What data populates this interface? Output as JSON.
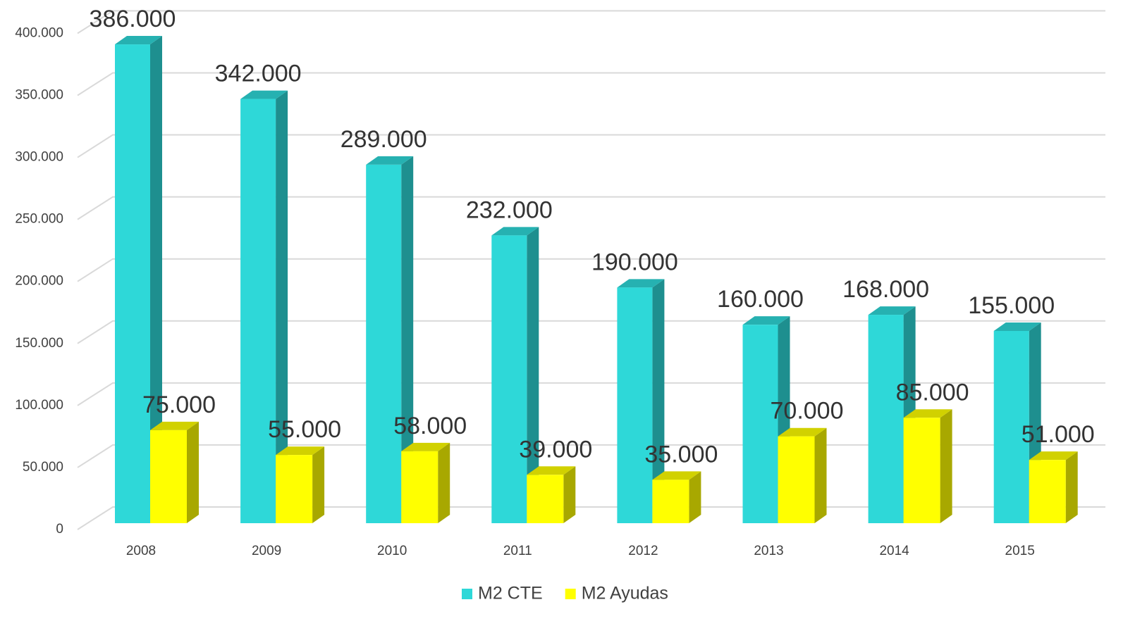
{
  "chart_data": {
    "type": "bar3d",
    "categories": [
      "2008",
      "2009",
      "2010",
      "2011",
      "2012",
      "2013",
      "2014",
      "2015"
    ],
    "series": [
      {
        "name": "M2 CTE",
        "color": "#2ed8d8",
        "values": [
          386000,
          342000,
          289000,
          232000,
          190000,
          160000,
          168000,
          155000
        ],
        "value_labels": [
          "386.000",
          "342.000",
          "289.000",
          "232.000",
          "190.000",
          "160.000",
          "168.000",
          "155.000"
        ]
      },
      {
        "name": "M2 Ayudas",
        "color": "#ffff00",
        "values": [
          75000,
          55000,
          58000,
          39000,
          35000,
          70000,
          85000,
          51000
        ],
        "value_labels": [
          "75.000",
          "55.000",
          "58.000",
          "39.000",
          "35.000",
          "70.000",
          "85.000",
          "51.000"
        ]
      }
    ],
    "ylim": [
      0,
      400000
    ],
    "yticks": [
      0,
      {
        "value": 50000,
        "label": "50.000"
      },
      {
        "value": 100000,
        "label": "100.000"
      },
      {
        "value": 150000,
        "label": "150.000"
      },
      {
        "value": 200000,
        "label": "200.000"
      },
      {
        "value": 250000,
        "label": "250.000"
      },
      {
        "value": 300000,
        "label": "300.000"
      },
      {
        "value": 350000,
        "label": "350.000"
      },
      {
        "value": 400000,
        "label": "400.000"
      }
    ],
    "grid": true,
    "legend": "bottom"
  }
}
